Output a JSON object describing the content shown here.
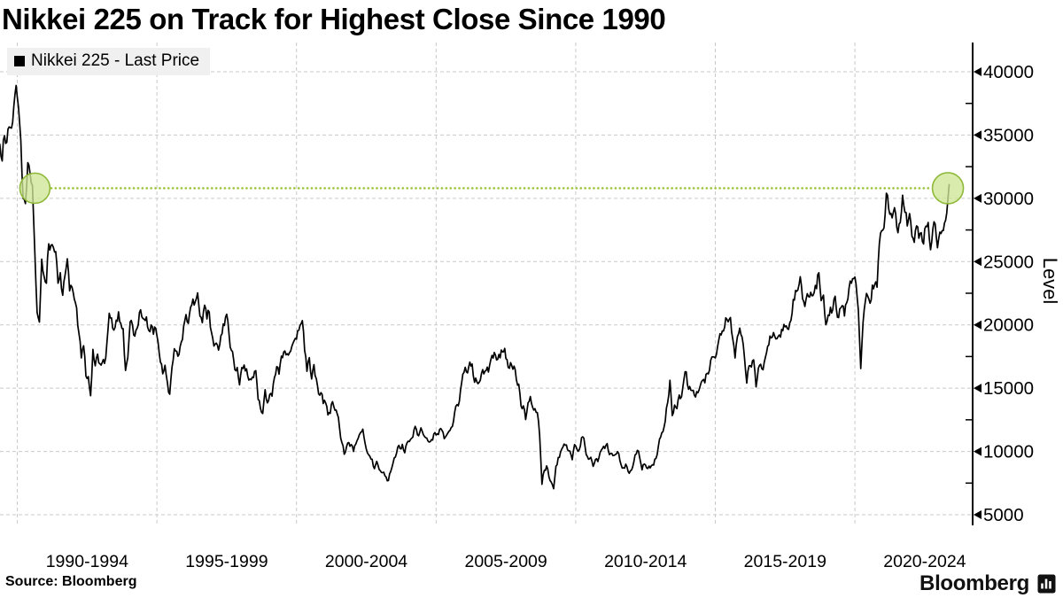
{
  "title": "Nikkei 225 on Track for Highest Close Since 1990",
  "legend": {
    "label": "Nikkei 225 - Last Price"
  },
  "source": "Source: Bloomberg",
  "brand": {
    "wordmark": "Bloomberg"
  },
  "colors": {
    "line": "#000000",
    "grid": "#c9c9c9",
    "axis": "#000000",
    "text": "#000000",
    "legend_bg": "#f0f0f0",
    "highlight_dots": "#9dc53c",
    "highlight_circle_fill": "rgba(208,231,150,0.78)",
    "highlight_circle_stroke": "#8fb93a"
  },
  "axes": {
    "y": {
      "title": "Level",
      "ticks": [
        40000,
        35000,
        30000,
        25000,
        20000,
        15000,
        10000,
        5000
      ],
      "minor_step": 2500
    },
    "x": {
      "gridline_years": [
        1990,
        1995,
        2000,
        2005,
        2010,
        2015,
        2020
      ],
      "labels": [
        {
          "text": "1990-1994",
          "center_year": 1992.5
        },
        {
          "text": "1995-1999",
          "center_year": 1997.5
        },
        {
          "text": "2000-2004",
          "center_year": 2002.5
        },
        {
          "text": "2005-2009",
          "center_year": 2007.5
        },
        {
          "text": "2010-2014",
          "center_year": 2012.5
        },
        {
          "text": "2015-2019",
          "center_year": 2017.5
        },
        {
          "text": "2020-2024",
          "center_year": 2022.5
        }
      ]
    }
  },
  "chart_data": {
    "type": "line",
    "title": "Nikkei 225 on Track for Highest Close Since 1990",
    "ylabel": "Level",
    "ylim": [
      5000,
      40000
    ],
    "xlim_years": [
      1989.38,
      2024.28
    ],
    "grid": true,
    "legend_position": "top-left",
    "series": [
      {
        "name": "Nikkei 225 - Last Price",
        "frequency": "monthly",
        "start_year": 1989,
        "start_month": 5,
        "values": [
          34267,
          32950,
          34954,
          34431,
          35637,
          35549,
          37269,
          38916,
          37189,
          34592,
          29980,
          29585,
          32818,
          31940,
          31036,
          25978,
          20984,
          20222,
          25194,
          23849,
          23293,
          26409,
          26292,
          26111,
          25790,
          23291,
          24121,
          22336,
          23916,
          25222,
          22687,
          22984,
          22023,
          21339,
          19346,
          17391,
          18348,
          15952,
          15910,
          14400,
          18061,
          16767,
          17684,
          16925,
          17024,
          16953,
          18591,
          20919,
          20552,
          19590,
          20380,
          21027,
          20106,
          19703,
          16406,
          17417,
          20229,
          19997,
          19112,
          19725,
          20974,
          20644,
          20449,
          20629,
          19564,
          19990,
          19260,
          19723,
          18650,
          17053,
          16140,
          16807,
          15437,
          14517,
          16678,
          18117,
          17913,
          17655,
          18648,
          19868,
          20813,
          20118,
          21407,
          22041,
          21846,
          22531,
          20693,
          20167,
          21556,
          20467,
          21020,
          19361,
          18330,
          18557,
          18003,
          19151,
          20069,
          20605,
          20331,
          18229,
          17888,
          16459,
          16636,
          15259,
          16628,
          16832,
          16527,
          15641,
          15670,
          15830,
          16379,
          14108,
          13406,
          13000,
          14884,
          13842,
          14499,
          14368,
          15837,
          16702,
          16112,
          17530,
          17861,
          17637,
          17605,
          17942,
          18558,
          18934,
          19539,
          19959,
          20337,
          17974,
          16332,
          17411,
          15727,
          16861,
          15747,
          14540,
          14649,
          13786,
          13844,
          12884,
          12999,
          13934,
          13262,
          12969,
          11861,
          10714,
          9775,
          10366,
          10697,
          10543,
          9998,
          10588,
          11025,
          11492,
          11764,
          10622,
          9878,
          9619,
          9383,
          8640,
          9216,
          8579,
          8339,
          8363,
          7973,
          7700,
          8425,
          9083,
          9563,
          10343,
          10219,
          10559,
          9895,
          10677,
          10784,
          11041,
          11715,
          11762,
          11236,
          11858,
          11326,
          11082,
          10824,
          10772,
          10899,
          11489,
          11387,
          11740,
          11669,
          11009,
          11277,
          11584,
          11900,
          12414,
          13574,
          13606,
          14872,
          16111,
          16649,
          16205,
          17060,
          16906,
          15467,
          15505,
          15457,
          16141,
          16128,
          16399,
          16274,
          17226,
          17383,
          17604,
          17288,
          17400,
          17876,
          18138,
          17249,
          16569,
          16786,
          16738,
          15681,
          15308,
          13592,
          13603,
          12526,
          13850,
          14339,
          13481,
          13377,
          13073,
          11260,
          7400,
          8512,
          8860,
          7994,
          7568,
          7055,
          8828,
          9523,
          9958,
          10357,
          10493,
          10133,
          10035,
          9346,
          10546,
          10198,
          10126,
          11090,
          11057,
          9769,
          9383,
          9537,
          8824,
          9369,
          9202,
          9937,
          10229,
          10237,
          10624,
          9755,
          9850,
          9694,
          9816,
          9833,
          8955,
          8700,
          8988,
          8435,
          8455,
          8803,
          9723,
          10084,
          9521,
          8543,
          9007,
          8695,
          8840,
          8870,
          8928,
          9446,
          10395,
          11139,
          11559,
          12398,
          13861,
          15627,
          12834,
          13668,
          13389,
          14456,
          14328,
          15662,
          16291,
          14915,
          14841,
          14828,
          14304,
          14632,
          15162,
          15621,
          15425,
          16174,
          16414,
          17460,
          17451,
          17674,
          18798,
          19207,
          19520,
          20563,
          20236,
          20585,
          18890,
          17388,
          19083,
          19747,
          19034,
          17518,
          15400,
          16759,
          16666,
          17235,
          15100,
          16569,
          16887,
          16450,
          17425,
          18308,
          19114,
          19041,
          19119,
          18909,
          19197,
          19651,
          20033,
          19925,
          19646,
          20356,
          22012,
          22725,
          22765,
          23800,
          22068,
          21454,
          22468,
          22202,
          22305,
          22554,
          22865,
          24120,
          21920,
          22351,
          20015,
          20773,
          21385,
          21206,
          22259,
          20601,
          21276,
          21522,
          20704,
          21756,
          22927,
          23294,
          23657,
          23205,
          21143,
          16553,
          20194,
          21878,
          22288,
          21710,
          23140,
          23185,
          22977,
          26434,
          27444,
          27663,
          30400,
          29179,
          28813,
          28860,
          28792,
          27284,
          28090,
          30250,
          28893,
          27822,
          28792,
          27002,
          26527,
          27821,
          26848,
          27280,
          26393,
          27801,
          28092,
          25937,
          27587,
          27969,
          26095,
          27327,
          27446,
          28041,
          28856,
          31086
        ]
      }
    ],
    "annotations": {
      "threshold_level": 30800,
      "threshold_style": "dotted-green",
      "circles": [
        {
          "year": 1990.63,
          "level": 30800,
          "meaning": "last time at this level (Aug 1990)"
        },
        {
          "year": 2023.33,
          "level": 30800,
          "meaning": "current price back at 1990 level"
        }
      ]
    }
  }
}
